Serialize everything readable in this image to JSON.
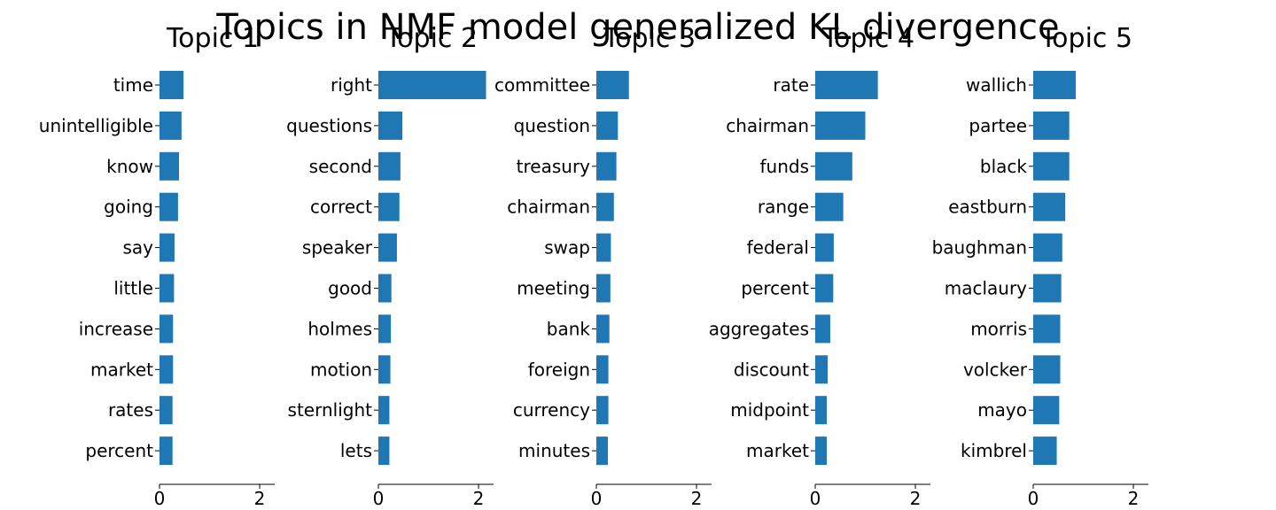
{
  "title": "Topics in NMF model generalized KL divergence",
  "colors": {
    "bar": "#1f77b4",
    "axis": "#000000",
    "text": "#000000"
  },
  "chart_data": [
    {
      "type": "bar",
      "orientation": "horizontal",
      "title": "Topic 1",
      "categories": [
        "time",
        "unintelligible",
        "know",
        "going",
        "say",
        "little",
        "increase",
        "market",
        "rates",
        "percent"
      ],
      "values": [
        0.48,
        0.44,
        0.39,
        0.37,
        0.3,
        0.29,
        0.27,
        0.27,
        0.26,
        0.26
      ],
      "xlim": [
        0,
        2.3
      ],
      "xticks": [
        0,
        2
      ]
    },
    {
      "type": "bar",
      "orientation": "horizontal",
      "title": "Topic 2",
      "categories": [
        "right",
        "questions",
        "second",
        "correct",
        "speaker",
        "good",
        "holmes",
        "motion",
        "sternlight",
        "lets"
      ],
      "values": [
        2.15,
        0.48,
        0.44,
        0.42,
        0.37,
        0.26,
        0.25,
        0.24,
        0.22,
        0.22
      ],
      "xlim": [
        0,
        2.3
      ],
      "xticks": [
        0,
        2
      ]
    },
    {
      "type": "bar",
      "orientation": "horizontal",
      "title": "Topic 3",
      "categories": [
        "committee",
        "question",
        "treasury",
        "chairman",
        "swap",
        "meeting",
        "bank",
        "foreign",
        "currency",
        "minutes"
      ],
      "values": [
        0.65,
        0.43,
        0.4,
        0.35,
        0.29,
        0.28,
        0.26,
        0.24,
        0.24,
        0.23
      ],
      "xlim": [
        0,
        2.3
      ],
      "xticks": [
        0,
        2
      ]
    },
    {
      "type": "bar",
      "orientation": "horizontal",
      "title": "Topic 4",
      "categories": [
        "rate",
        "chairman",
        "funds",
        "range",
        "federal",
        "percent",
        "aggregates",
        "discount",
        "midpoint",
        "market"
      ],
      "values": [
        1.25,
        1.0,
        0.74,
        0.56,
        0.37,
        0.36,
        0.3,
        0.25,
        0.23,
        0.23
      ],
      "xlim": [
        0,
        2.3
      ],
      "xticks": [
        0,
        2
      ]
    },
    {
      "type": "bar",
      "orientation": "horizontal",
      "title": "Topic 5",
      "categories": [
        "wallich",
        "partee",
        "black",
        "eastburn",
        "baughman",
        "maclaury",
        "morris",
        "volcker",
        "mayo",
        "kimbrel"
      ],
      "values": [
        0.85,
        0.72,
        0.72,
        0.64,
        0.58,
        0.56,
        0.54,
        0.54,
        0.52,
        0.47
      ],
      "xlim": [
        0,
        2.3
      ],
      "xticks": [
        0,
        2
      ]
    }
  ]
}
